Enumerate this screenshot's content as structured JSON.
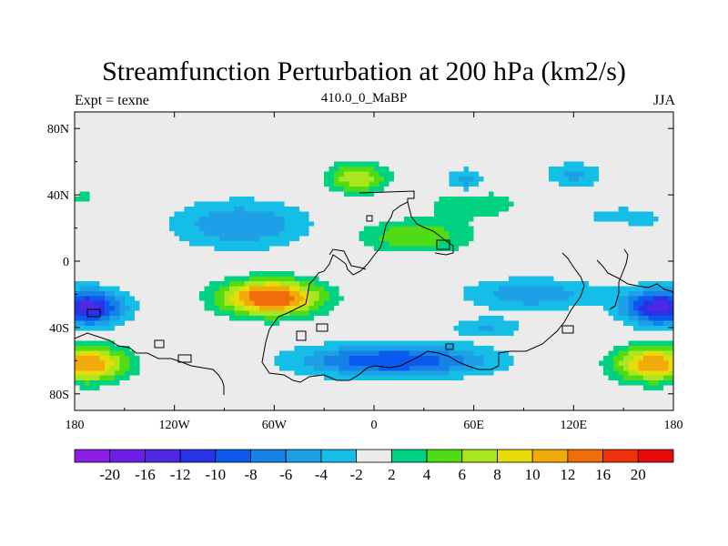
{
  "chart_data": {
    "type": "heatmap",
    "title": "Streamfunction Perturbation at 200 hPa (km2/s)",
    "left_label": "Expt = texne",
    "center_label": "410.0_0_MaBP",
    "right_label": "JJA",
    "xlim": [
      -180,
      180
    ],
    "ylim": [
      -90,
      90
    ],
    "x_ticks": [
      {
        "value": -180,
        "label": "180"
      },
      {
        "value": -120,
        "label": "120W"
      },
      {
        "value": -60,
        "label": "60W"
      },
      {
        "value": 0,
        "label": "0"
      },
      {
        "value": 60,
        "label": "60E"
      },
      {
        "value": 120,
        "label": "120E"
      },
      {
        "value": 180,
        "label": "180"
      }
    ],
    "y_ticks": [
      {
        "value": 80,
        "label": "80N"
      },
      {
        "value": 40,
        "label": "40N"
      },
      {
        "value": 0,
        "label": "0"
      },
      {
        "value": -40,
        "label": "40S"
      },
      {
        "value": -80,
        "label": "80S"
      }
    ],
    "colorbar": {
      "labels": [
        "-20",
        "-16",
        "-12",
        "-10",
        "-8",
        "-6",
        "-4",
        "-2",
        "2",
        "4",
        "6",
        "8",
        "10",
        "12",
        "16",
        "20"
      ],
      "colors": [
        "#8c1ee6",
        "#6e1ee6",
        "#5028e6",
        "#2832e6",
        "#0a5af0",
        "#1482e6",
        "#1ea0e6",
        "#14bee6",
        "#ebebeb",
        "#00d282",
        "#50dc14",
        "#aae61e",
        "#e6dc0a",
        "#f0aa0a",
        "#f06e0a",
        "#f0320a",
        "#e60a0a"
      ]
    },
    "anomalies": [
      {
        "lon": -172,
        "lat": -28,
        "amp": -13,
        "slon": 22,
        "slat": 11
      },
      {
        "lon": 172,
        "lat": -28,
        "amp": -13,
        "slon": 22,
        "slat": 11
      },
      {
        "lon": -172,
        "lat": -62,
        "amp": 12,
        "slon": 24,
        "slat": 11
      },
      {
        "lon": 168,
        "lat": -62,
        "amp": 12,
        "slon": 24,
        "slat": 11
      },
      {
        "lon": -62,
        "lat": -22,
        "amp": 15,
        "slon": 30,
        "slat": 11
      },
      {
        "lon": -80,
        "lat": 22,
        "amp": -6,
        "slon": 42,
        "slat": 15
      },
      {
        "lon": 12,
        "lat": -60,
        "amp": -10,
        "slon": 58,
        "slat": 10
      },
      {
        "lon": -10,
        "lat": 50,
        "amp": 8,
        "slon": 18,
        "slat": 9
      },
      {
        "lon": 25,
        "lat": 15,
        "amp": 6,
        "slon": 34,
        "slat": 10
      },
      {
        "lon": 55,
        "lat": 48,
        "amp": -5,
        "slon": 12,
        "slat": 8
      },
      {
        "lon": 95,
        "lat": -20,
        "amp": -5.5,
        "slon": 42,
        "slat": 10
      },
      {
        "lon": 120,
        "lat": 52,
        "amp": -4.5,
        "slon": 18,
        "slat": 8
      },
      {
        "lon": 150,
        "lat": 25,
        "amp": -3.5,
        "slon": 28,
        "slat": 9
      },
      {
        "lon": 68,
        "lat": -40,
        "amp": -4,
        "slon": 22,
        "slat": 6
      },
      {
        "lon": 145,
        "lat": 20,
        "amp": 3,
        "slon": 10,
        "slat": 6
      },
      {
        "lon": -175,
        "lat": 38,
        "amp": 3,
        "slon": 8,
        "slat": 5
      },
      {
        "lon": 60,
        "lat": 35,
        "amp": 4,
        "slon": 28,
        "slat": 9
      }
    ]
  }
}
